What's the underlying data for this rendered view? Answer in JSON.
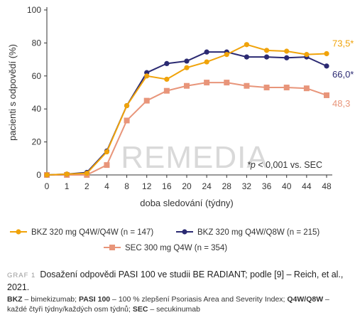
{
  "chart_data": {
    "type": "line",
    "x": [
      0,
      1,
      2,
      4,
      8,
      12,
      16,
      20,
      24,
      28,
      32,
      36,
      40,
      44,
      48
    ],
    "xlabel": "doba sledování (týdny)",
    "ylabel": "pacienti s odpovědí (%)",
    "ylim": [
      0,
      100
    ],
    "yticks": [
      0,
      20,
      40,
      60,
      80,
      100
    ],
    "grid": false,
    "series": [
      {
        "name": "BKZ 320 mg Q4W/Q4W (n = 147)",
        "color": "#f0a30a",
        "marker": "circle",
        "end_label": "73,5*",
        "values": [
          0,
          0.5,
          1,
          14,
          42,
          60,
          58,
          65,
          68.5,
          73,
          79,
          75.5,
          75,
          73,
          73.5
        ]
      },
      {
        "name": "BKZ 320 mg Q4W/Q8W (n = 215)",
        "color": "#2b2a72",
        "marker": "circle",
        "end_label": "66,0*",
        "values": [
          0,
          0.5,
          1.5,
          14.5,
          42,
          62,
          67.5,
          69,
          74.5,
          74.5,
          71.5,
          71.5,
          71,
          71.5,
          66
        ]
      },
      {
        "name": "SEC 300 mg Q4W (n = 354)",
        "color": "#e8957a",
        "marker": "square",
        "end_label": "48,3",
        "values": [
          0,
          0,
          0,
          6,
          33,
          45,
          51,
          54,
          56,
          56,
          54,
          53,
          53,
          52.5,
          48.3
        ]
      }
    ],
    "annotation": "*p < 0,001 vs. SEC",
    "watermark": "REMEDIA",
    "legend_position": "bottom"
  },
  "caption": {
    "number": "GRAF 1",
    "text": "Dosažení odpovědi PASI 100 ve studii BE RADIANT; podle [9] – Reich, et al., 2021."
  },
  "footnote": {
    "parts": [
      {
        "bold": "BKZ",
        "text": " – bimekizumab; "
      },
      {
        "bold": "PASI 100",
        "text": " – 100 % zlepšení Psoriasis Area and Severity Index; "
      },
      {
        "bold": "Q4W/Q8W",
        "text": " – každé čtyři týdny/každých osm týdnů; "
      },
      {
        "bold": "SEC",
        "text": " – secukinumab"
      }
    ]
  }
}
